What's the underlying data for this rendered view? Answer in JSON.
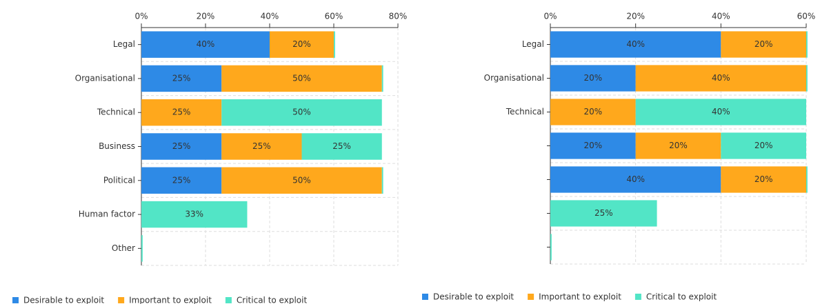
{
  "chart_data": [
    {
      "type": "bar",
      "orientation": "horizontal",
      "stacked": true,
      "grid": true,
      "legend": "bottom",
      "categories": [
        "Legal",
        "Organisational",
        "Technical",
        "Business",
        "Political",
        "Human factor",
        "Other"
      ],
      "series": [
        {
          "name": "Desirable to exploit",
          "color": "#2e8ae6",
          "values": [
            40,
            25,
            0,
            25,
            25,
            0,
            0
          ],
          "value_labels": [
            "40%",
            "25%",
            null,
            "25%",
            "25%",
            null,
            null
          ]
        },
        {
          "name": "Important to exploit",
          "color": "#ffa81c",
          "values": [
            20,
            50,
            25,
            25,
            50,
            0,
            0
          ],
          "value_labels": [
            "20%",
            "50%",
            "25%",
            "25%",
            "50%",
            null,
            null
          ]
        },
        {
          "name": "Critical to exploit",
          "color": "#52e5c6",
          "values": [
            0.4,
            0.4,
            50,
            25,
            0.4,
            33,
            0.4
          ],
          "value_labels": [
            null,
            null,
            "50%",
            "25%",
            null,
            "33%",
            null
          ]
        }
      ],
      "xlim": [
        0,
        80
      ],
      "xticks": [
        {
          "value": 0,
          "label": "0%"
        },
        {
          "value": 20,
          "label": "20%"
        },
        {
          "value": 40,
          "label": "40%"
        },
        {
          "value": 60,
          "label": "60%"
        },
        {
          "value": 80,
          "label": "80%"
        }
      ]
    },
    {
      "type": "bar",
      "orientation": "horizontal",
      "stacked": true,
      "grid": true,
      "legend": "bottom",
      "categories": [
        "Legal",
        "Organisational",
        "Technical",
        null,
        null,
        null,
        null
      ],
      "series": [
        {
          "name": "Desirable to exploit",
          "color": "#2e8ae6",
          "values": [
            40,
            20,
            0,
            20,
            40,
            0,
            0
          ],
          "value_labels": [
            "40%",
            "20%",
            null,
            "20%",
            "40%",
            null,
            null
          ]
        },
        {
          "name": "Important to exploit",
          "color": "#ffa81c",
          "values": [
            20,
            40,
            20,
            20,
            20,
            0,
            0
          ],
          "value_labels": [
            "20%",
            "40%",
            "20%",
            "20%",
            "20%",
            null,
            null
          ]
        },
        {
          "name": "Critical to exploit",
          "color": "#52e5c6",
          "values": [
            0.3,
            0.3,
            40,
            20,
            0.3,
            25,
            0.3
          ],
          "value_labels": [
            null,
            null,
            "40%",
            "20%",
            null,
            "25%",
            null
          ]
        }
      ],
      "xlim": [
        0,
        60
      ],
      "xticks": [
        {
          "value": 0,
          "label": "0%"
        },
        {
          "value": 20,
          "label": "20%"
        },
        {
          "value": 40,
          "label": "40%"
        },
        {
          "value": 60,
          "label": "60%"
        }
      ]
    }
  ]
}
